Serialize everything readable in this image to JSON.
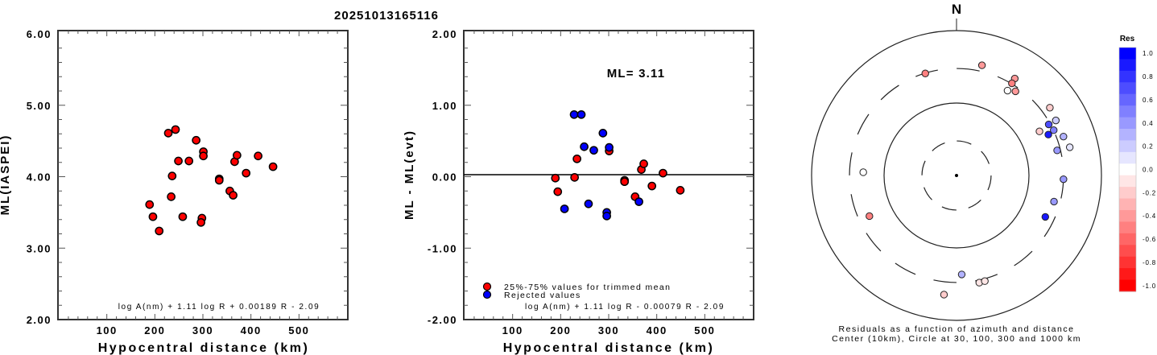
{
  "title": "20251013165116",
  "chart_data": [
    {
      "type": "scatter",
      "id": "magnitude-vs-distance",
      "xlabel": "Hypocentral distance (km)",
      "ylabel": "ML(IASPEI)",
      "xlim": [
        0,
        600
      ],
      "ylim": [
        2.0,
        6.0
      ],
      "x_ticks": [
        100,
        200,
        300,
        400,
        500
      ],
      "x_tick_labels": [
        "100",
        "200",
        "300",
        "400",
        "500"
      ],
      "y_ticks": [
        2.0,
        3.0,
        4.0,
        5.0,
        6.0
      ],
      "y_tick_labels": [
        "2.00",
        "3.00",
        "4.00",
        "5.00",
        "6.00"
      ],
      "annotation": "log A(nm) + 1.11 log R + 0.00189 R - 2.09",
      "marker_color": "#ff0000",
      "points": [
        {
          "x": 189,
          "y": 3.61
        },
        {
          "x": 196,
          "y": 3.44
        },
        {
          "x": 209,
          "y": 3.24
        },
        {
          "x": 228,
          "y": 4.61
        },
        {
          "x": 243,
          "y": 4.66
        },
        {
          "x": 234,
          "y": 3.72
        },
        {
          "x": 236,
          "y": 4.01
        },
        {
          "x": 249,
          "y": 4.22
        },
        {
          "x": 258,
          "y": 3.44
        },
        {
          "x": 271,
          "y": 4.22
        },
        {
          "x": 286,
          "y": 4.51
        },
        {
          "x": 301,
          "y": 4.35
        },
        {
          "x": 301,
          "y": 4.29
        },
        {
          "x": 298,
          "y": 3.42
        },
        {
          "x": 296,
          "y": 3.36
        },
        {
          "x": 334,
          "y": 3.97
        },
        {
          "x": 334,
          "y": 3.95
        },
        {
          "x": 356,
          "y": 3.8
        },
        {
          "x": 363,
          "y": 3.74
        },
        {
          "x": 366,
          "y": 4.21
        },
        {
          "x": 371,
          "y": 4.3
        },
        {
          "x": 390,
          "y": 4.05
        },
        {
          "x": 415,
          "y": 4.29
        },
        {
          "x": 446,
          "y": 4.14
        }
      ]
    },
    {
      "type": "scatter",
      "id": "residual-vs-distance",
      "xlabel": "Hypocentral distance (km)",
      "ylabel": "ML - ML(evt)",
      "xlim": [
        0,
        600
      ],
      "ylim": [
        -2.0,
        2.0
      ],
      "x_ticks": [
        100,
        200,
        300,
        400,
        500
      ],
      "x_tick_labels": [
        "100",
        "200",
        "300",
        "400",
        "500"
      ],
      "y_ticks": [
        -2.0,
        -1.0,
        0.0,
        1.0,
        2.0
      ],
      "y_tick_labels": [
        "-2.00",
        "-1.00",
        "0.00",
        "1.00",
        "2.00"
      ],
      "ml_label": "ML= 3.11",
      "annotation": "log A(nm) + 1.11 log R - 0.00079 R - 2.09",
      "legend": [
        {
          "label": "25%-75% values for trimmed mean",
          "color": "#ff0000"
        },
        {
          "label": "Rejected values",
          "color": "#0000ff"
        }
      ],
      "legend_position": "bottom-left",
      "series": [
        {
          "name": "25%-75% values for trimmed mean",
          "color": "#ff0000",
          "points": [
            {
              "x": 301,
              "y": 0.36
            },
            {
              "x": 234,
              "y": 0.25
            },
            {
              "x": 189,
              "y": -0.02
            },
            {
              "x": 229,
              "y": -0.01
            },
            {
              "x": 333,
              "y": -0.05
            },
            {
              "x": 333,
              "y": -0.07
            },
            {
              "x": 368,
              "y": 0.1
            },
            {
              "x": 373,
              "y": 0.18
            },
            {
              "x": 413,
              "y": 0.05
            },
            {
              "x": 194,
              "y": -0.21
            },
            {
              "x": 390,
              "y": -0.13
            },
            {
              "x": 355,
              "y": -0.28
            },
            {
              "x": 449,
              "y": -0.19
            }
          ]
        },
        {
          "name": "Rejected values",
          "color": "#0000ff",
          "points": [
            {
              "x": 228,
              "y": 0.87
            },
            {
              "x": 243,
              "y": 0.87
            },
            {
              "x": 288,
              "y": 0.61
            },
            {
              "x": 249,
              "y": 0.42
            },
            {
              "x": 269,
              "y": 0.37
            },
            {
              "x": 301,
              "y": 0.41
            },
            {
              "x": 208,
              "y": -0.45
            },
            {
              "x": 258,
              "y": -0.38
            },
            {
              "x": 296,
              "y": -0.5
            },
            {
              "x": 296,
              "y": -0.55
            },
            {
              "x": 363,
              "y": -0.35
            }
          ]
        }
      ]
    },
    {
      "type": "polar-scatter",
      "id": "residual-azimuth-map",
      "north_label": "N",
      "caption_line1": "Residuals as a function of azimuth and distance",
      "caption_line2": "Center (10km), Circle at 30, 100, 300 and 1000 km",
      "center_km": 10,
      "rings_km": [
        {
          "km": 30,
          "style": "dashed"
        },
        {
          "km": 100,
          "style": "solid"
        },
        {
          "km": 300,
          "style": "dashed"
        },
        {
          "km": 1000,
          "style": "solid"
        }
      ],
      "colorbar": {
        "title": "Res",
        "min": -1.0,
        "max": 1.0,
        "steps": 21,
        "tick_labels": [
          "1.0",
          "0.8",
          "0.6",
          "0.4",
          "0.2",
          "0.0",
          "-0.2",
          "-0.4",
          "-0.6",
          "-0.8",
          "-1.0"
        ],
        "high_color": "#0000ff",
        "mid_color": "#ffffff",
        "low_color": "#ff0000"
      },
      "points": [
        {
          "azimuth": 343,
          "distance_km": 297,
          "residual": -0.55
        },
        {
          "azimuth": 13,
          "distance_km": 364,
          "residual": -0.4
        },
        {
          "azimuth": 31,
          "distance_km": 364,
          "residual": -0.4
        },
        {
          "azimuth": 31,
          "distance_km": 305,
          "residual": -0.55
        },
        {
          "azimuth": 31,
          "distance_km": 233,
          "residual": 0.0
        },
        {
          "azimuth": 35,
          "distance_km": 262,
          "residual": -0.4
        },
        {
          "azimuth": 54,
          "distance_km": 391,
          "residual": -0.2
        },
        {
          "azimuth": 61,
          "distance_km": 369,
          "residual": 0.2
        },
        {
          "azimuth": 61,
          "distance_km": 285,
          "residual": 0.7
        },
        {
          "azimuth": 65,
          "distance_km": 302,
          "residual": 0.45
        },
        {
          "azimuth": 62,
          "distance_km": 198,
          "residual": -0.25
        },
        {
          "azimuth": 66,
          "distance_km": 244,
          "residual": 0.9
        },
        {
          "azimuth": 70,
          "distance_km": 372,
          "residual": 0.25
        },
        {
          "azimuth": 76,
          "distance_km": 408,
          "residual": 0.05
        },
        {
          "azimuth": 76,
          "distance_km": 270,
          "residual": 0.4
        },
        {
          "azimuth": 92,
          "distance_km": 300,
          "residual": 0.4
        },
        {
          "azimuth": 105,
          "distance_km": 247,
          "residual": 0.4
        },
        {
          "azimuth": 115,
          "distance_km": 225,
          "residual": 0.9
        },
        {
          "azimuth": 272,
          "distance_km": 194,
          "residual": -0.05
        },
        {
          "azimuth": 245,
          "distance_km": 212,
          "residual": -0.5
        },
        {
          "azimuth": 177,
          "distance_km": 233,
          "residual": 0.3
        },
        {
          "azimuth": 168,
          "distance_km": 325,
          "residual": -0.1
        },
        {
          "azimuth": 165,
          "distance_km": 323,
          "residual": -0.15
        },
        {
          "azimuth": 186,
          "distance_km": 450,
          "residual": -0.2
        }
      ]
    }
  ]
}
